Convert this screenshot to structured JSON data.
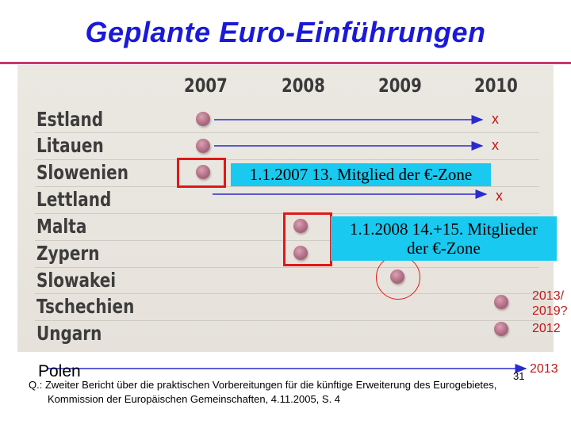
{
  "title": "Geplante Euro-Einführungen",
  "years": [
    "2007",
    "2008",
    "2009",
    "2010"
  ],
  "countries": [
    "Estland",
    "Litauen",
    "Slowenien",
    "Lettland",
    "Malta",
    "Zypern",
    "Slowakei",
    "Tschechien",
    "Ungarn"
  ],
  "marks": {
    "estland": "x",
    "litauen": "x",
    "lettland": "x"
  },
  "callouts": {
    "slovenia": "1.1.2007 13. Mitglied der €-Zone",
    "malta_cyprus_line1": "1.1.2008 14.+15. Mitglieder",
    "malta_cyprus_line2": "der €-Zone"
  },
  "dates": {
    "tschechien_line1": "2013/",
    "tschechien_line2": "2019?",
    "ungarn": "2012",
    "polen": "2013"
  },
  "polen_label": "Polen",
  "source": {
    "line1": "Q.: Zweiter Bericht über die praktischen Vorbereitungen für die künftige Erweiterung des Eurogebietes,",
    "line2": "Kommission der Europäischen Gemeinschaften, 4.11.2005, S. 4"
  },
  "page_number": "31",
  "colors": {
    "title": "#1a1ad8",
    "arrow": "#2a2ad0",
    "highlight": "#e01818",
    "callout_bg": "#19c9f0",
    "annotation": "#c01818"
  }
}
